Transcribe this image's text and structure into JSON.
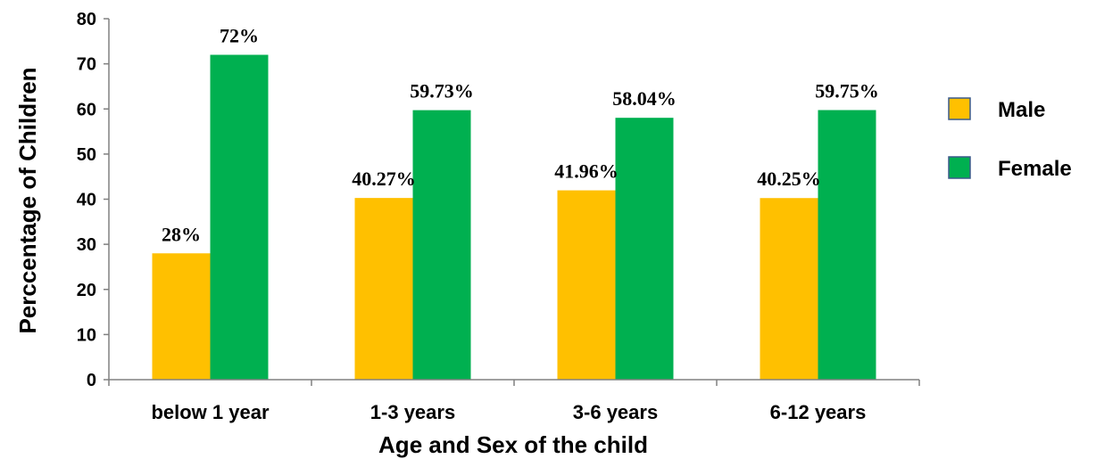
{
  "chart_data": {
    "type": "bar",
    "categories": [
      "below 1 year",
      "1-3 years",
      "3-6 years",
      "6-12 years"
    ],
    "series": [
      {
        "name": "Male",
        "values": [
          28,
          40.27,
          41.96,
          40.25
        ],
        "labels": [
          "28%",
          "40.27%",
          "41.96%",
          "40.25%"
        ],
        "color": "#FFC000"
      },
      {
        "name": "Female",
        "values": [
          72,
          59.73,
          58.04,
          59.75
        ],
        "labels": [
          "72%",
          "59.73%",
          "58.04%",
          "59.75%"
        ],
        "color": "#00B050"
      }
    ],
    "xlabel": "Age and Sex of the child",
    "ylabel": "Perccentage of Children",
    "ylim": [
      0,
      80
    ],
    "yticks": [
      0,
      10,
      20,
      30,
      40,
      50,
      60,
      70,
      80
    ],
    "grid": false,
    "legend": "right"
  }
}
